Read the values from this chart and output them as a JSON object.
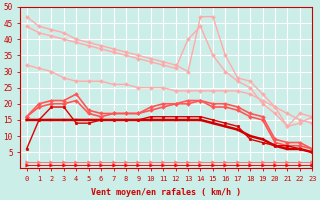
{
  "x": [
    0,
    1,
    2,
    3,
    4,
    5,
    6,
    7,
    8,
    9,
    10,
    11,
    12,
    13,
    14,
    15,
    16,
    17,
    18,
    19,
    20,
    21,
    22,
    23
  ],
  "series": [
    {
      "color": "#ffaaaa",
      "linewidth": 1.0,
      "marker": "D",
      "markersize": 2.0,
      "y": [
        47,
        44,
        43,
        42,
        40,
        39,
        38,
        37,
        36,
        35,
        34,
        33,
        32,
        30,
        47,
        47,
        35,
        28,
        27,
        23,
        19,
        13,
        17,
        16
      ]
    },
    {
      "color": "#ffaaaa",
      "linewidth": 1.0,
      "marker": "D",
      "markersize": 2.0,
      "y": [
        44,
        42,
        41,
        40,
        39,
        38,
        37,
        36,
        35,
        34,
        33,
        32,
        31,
        40,
        44,
        35,
        30,
        27,
        25,
        20,
        17,
        13,
        14,
        16
      ]
    },
    {
      "color": "#ffaaaa",
      "linewidth": 1.0,
      "marker": "D",
      "markersize": 2.0,
      "y": [
        32,
        31,
        30,
        28,
        27,
        27,
        27,
        26,
        26,
        25,
        25,
        25,
        24,
        24,
        24,
        24,
        24,
        24,
        23,
        21,
        19,
        17,
        15,
        14
      ]
    },
    {
      "color": "#ff5555",
      "linewidth": 1.2,
      "marker": "D",
      "markersize": 2.0,
      "y": [
        16,
        20,
        21,
        21,
        23,
        18,
        17,
        17,
        17,
        17,
        19,
        20,
        20,
        21,
        21,
        20,
        20,
        19,
        17,
        16,
        9,
        8,
        8,
        6
      ]
    },
    {
      "color": "#ff5555",
      "linewidth": 1.2,
      "marker": "D",
      "markersize": 2.0,
      "y": [
        16,
        19,
        20,
        20,
        21,
        17,
        16,
        17,
        17,
        17,
        18,
        19,
        20,
        20,
        21,
        19,
        19,
        18,
        16,
        15,
        8,
        7,
        7,
        6
      ]
    },
    {
      "color": "#cc0000",
      "linewidth": 1.8,
      "marker": "s",
      "markersize": 2.0,
      "y": [
        15,
        15,
        15,
        15,
        15,
        15,
        15,
        15,
        15,
        15,
        15,
        15,
        15,
        15,
        15,
        14,
        13,
        12,
        10,
        9,
        7,
        6,
        6,
        5
      ]
    },
    {
      "color": "#dd0000",
      "linewidth": 1.0,
      "marker": "o",
      "markersize": 2.0,
      "y": [
        6,
        15,
        19,
        19,
        14,
        14,
        15,
        15,
        15,
        15,
        16,
        16,
        16,
        16,
        16,
        15,
        14,
        13,
        9,
        8,
        7,
        7,
        6,
        5
      ]
    },
    {
      "color": "#ff7777",
      "linewidth": 0.7,
      "marker": ">",
      "markersize": 2.5,
      "y": [
        2,
        2,
        2,
        2,
        2,
        2,
        2,
        2,
        2,
        2,
        2,
        2,
        2,
        2,
        2,
        2,
        2,
        2,
        2,
        2,
        2,
        2,
        2,
        2
      ]
    },
    {
      "color": "#ff0000",
      "linewidth": 0.7,
      "marker": ">",
      "markersize": 2.5,
      "y": [
        1,
        1,
        1,
        1,
        1,
        1,
        1,
        1,
        1,
        1,
        1,
        1,
        1,
        1,
        1,
        1,
        1,
        1,
        1,
        1,
        1,
        1,
        1,
        1
      ]
    }
  ],
  "xlabel": "Vent moyen/en rafales ( km/h )",
  "xlim": [
    -0.5,
    23
  ],
  "ylim": [
    0,
    50
  ],
  "yticks": [
    5,
    10,
    15,
    20,
    25,
    30,
    35,
    40,
    45,
    50
  ],
  "xticks": [
    0,
    1,
    2,
    3,
    4,
    5,
    6,
    7,
    8,
    9,
    10,
    11,
    12,
    13,
    14,
    15,
    16,
    17,
    18,
    19,
    20,
    21,
    22,
    23
  ],
  "bg_color": "#cceee8",
  "grid_color": "#ffffff",
  "axis_color": "#cc0000",
  "label_color": "#cc0000",
  "tick_color": "#cc0000"
}
